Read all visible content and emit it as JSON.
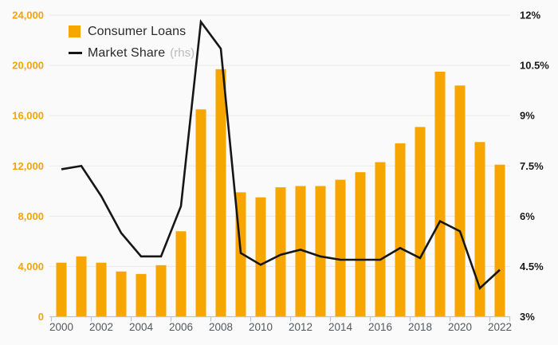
{
  "chart_data": {
    "type": "bar+line",
    "title": "",
    "categories": [
      2000,
      2001,
      2002,
      2003,
      2004,
      2005,
      2006,
      2007,
      2008,
      2009,
      2010,
      2011,
      2012,
      2013,
      2014,
      2015,
      2016,
      2017,
      2018,
      2019,
      2020,
      2021,
      2022
    ],
    "series": [
      {
        "name": "Consumer Loans",
        "type": "bar",
        "axis": "left",
        "color": "#F7A600",
        "values": [
          4300,
          4800,
          4300,
          3600,
          3400,
          4100,
          6800,
          16500,
          19700,
          9900,
          9500,
          10300,
          10400,
          10400,
          10900,
          11500,
          12300,
          13800,
          15100,
          19500,
          18400,
          13900,
          12100
        ]
      },
      {
        "name": "Market Share",
        "type": "line",
        "axis": "right",
        "color": "#161616",
        "values": [
          7.4,
          7.5,
          6.6,
          5.5,
          4.8,
          4.8,
          6.3,
          11.8,
          11.0,
          4.9,
          4.55,
          4.85,
          5.0,
          4.8,
          4.7,
          4.7,
          4.7,
          5.05,
          4.75,
          5.85,
          5.55,
          3.85,
          4.4
        ]
      }
    ],
    "left_axis": {
      "min": 0,
      "max": 24000,
      "step": 4000,
      "color": "#F2A40B",
      "tick_labels": [
        "0",
        "4,000",
        "8,000",
        "12,000",
        "16,000",
        "20,000",
        "24,000"
      ]
    },
    "right_axis": {
      "min": 3,
      "max": 12,
      "step": 1.5,
      "color": "#1A1A1A",
      "tick_labels": [
        "3%",
        "4.5%",
        "6%",
        "7.5%",
        "9%",
        "10.5%",
        "12%"
      ]
    },
    "x_tick_labels": [
      "2000",
      "2002",
      "2004",
      "2006",
      "2008",
      "2010",
      "2012",
      "2014",
      "2016",
      "2018",
      "2020",
      "2022"
    ],
    "grid": true,
    "legend_position": "top-left",
    "legend": {
      "items": [
        {
          "label": "Consumer Loans"
        },
        {
          "label": "Market Share",
          "suffix": "(rhs)"
        }
      ]
    },
    "colors": {
      "background": "#FAFAFA",
      "grid": "#E9E9E9",
      "axis": "#B9C2DA",
      "x_label": "#54575C",
      "rhs_suffix": "#BBBBBB"
    }
  }
}
